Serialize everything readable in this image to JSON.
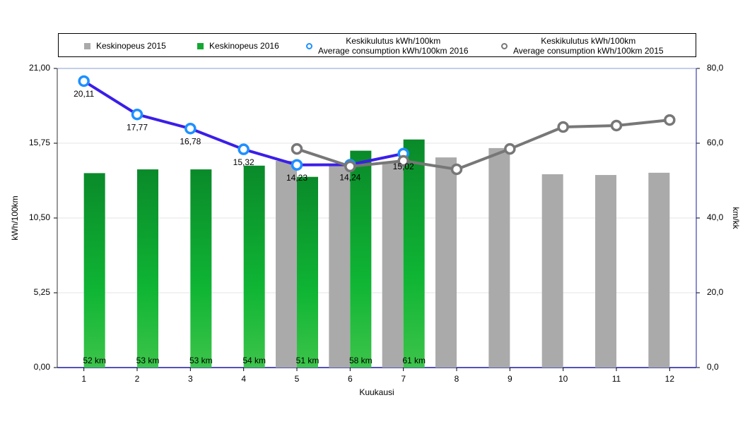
{
  "chart_data": {
    "type": "bar",
    "x_label": "Kuukausi",
    "y_label": "kWh/100km",
    "y2_label": "km/kk",
    "categories": [
      1,
      2,
      3,
      4,
      5,
      6,
      7,
      8,
      9,
      10,
      11,
      12
    ],
    "ylim": [
      0,
      21
    ],
    "yticks": [
      {
        "value": 0,
        "label": "0,00"
      },
      {
        "value": 5.25,
        "label": "5,25"
      },
      {
        "value": 10.5,
        "label": "10,50"
      },
      {
        "value": 15.75,
        "label": "15,75"
      },
      {
        "value": 21,
        "label": "21,00"
      }
    ],
    "y2lim": [
      0,
      80
    ],
    "y2ticks": [
      {
        "value": 0,
        "label": "0,0"
      },
      {
        "value": 20,
        "label": "20,0"
      },
      {
        "value": 40,
        "label": "40,0"
      },
      {
        "value": 60,
        "label": "60,0"
      },
      {
        "value": 80,
        "label": "80,0"
      }
    ],
    "grid": true,
    "series": [
      {
        "name": "Keskinopeus 2015",
        "type": "bar",
        "axis": "y2",
        "color": "#aaaaaa",
        "values": [
          null,
          null,
          null,
          null,
          55.3,
          54.0,
          55.0,
          56.2,
          58.7,
          51.7,
          51.5,
          52.1
        ]
      },
      {
        "name": "Keskinopeus 2016",
        "type": "bar",
        "axis": "y2",
        "color": "#12a832",
        "values": [
          52,
          53,
          53,
          54,
          51,
          58,
          61,
          null,
          null,
          null,
          null,
          null
        ],
        "value_labels": [
          "52 km",
          "53 km",
          "53 km",
          "54 km",
          "51 km",
          "58 km",
          "61 km",
          null,
          null,
          null,
          null,
          null
        ]
      },
      {
        "name": "Keskikulutus kWh/100km\nAverage consumption kWh/100km 2016",
        "type": "line",
        "color": "#3a1ee8",
        "marker_color": "#1e90ff",
        "values": [
          20.11,
          17.77,
          16.78,
          15.32,
          14.23,
          14.24,
          15.02,
          null,
          null,
          null,
          null,
          null
        ],
        "value_labels": [
          "20,11",
          "17,77",
          "16,78",
          "15,32",
          "14,23",
          "14,24",
          "15,02",
          null,
          null,
          null,
          null,
          null
        ]
      },
      {
        "name": "Keskikulutus kWh/100km\nAverage consumption kWh/100km 2015",
        "type": "line",
        "color": "#777777",
        "marker_color": "#777777",
        "values": [
          null,
          null,
          null,
          null,
          15.35,
          14.12,
          14.51,
          13.92,
          15.35,
          16.89,
          16.99,
          17.38
        ]
      }
    ]
  }
}
